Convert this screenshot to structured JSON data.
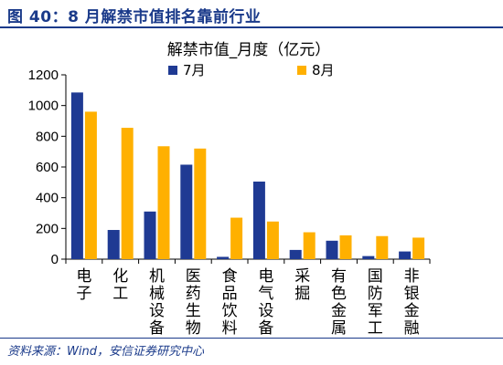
{
  "header": {
    "title": "图 40：8 月解禁市值排名靠前行业"
  },
  "footer": {
    "source": "资料来源：Wind，安信证券研究中心"
  },
  "colors": {
    "brand": "#1a3a8a",
    "series_7": "#1f3a93",
    "series_8": "#ffb000"
  },
  "chart_data": {
    "type": "bar",
    "title": "解禁市值_月度（亿元）",
    "xlabel": "",
    "ylabel": "",
    "categories": [
      "电子",
      "化工",
      "机械设备",
      "医药生物",
      "食品饮料",
      "电气设备",
      "采掘",
      "有色金属",
      "国防军工",
      "非银金融"
    ],
    "series": [
      {
        "name": "7月",
        "values": [
          1085,
          190,
          310,
          615,
          15,
          505,
          60,
          120,
          20,
          50
        ]
      },
      {
        "name": "8月",
        "values": [
          960,
          855,
          735,
          720,
          270,
          245,
          175,
          155,
          150,
          140
        ]
      }
    ],
    "ylim": [
      0,
      1200
    ],
    "yticks": [
      0,
      200,
      400,
      600,
      800,
      1000,
      1200
    ],
    "legend": "top",
    "grid": false
  }
}
